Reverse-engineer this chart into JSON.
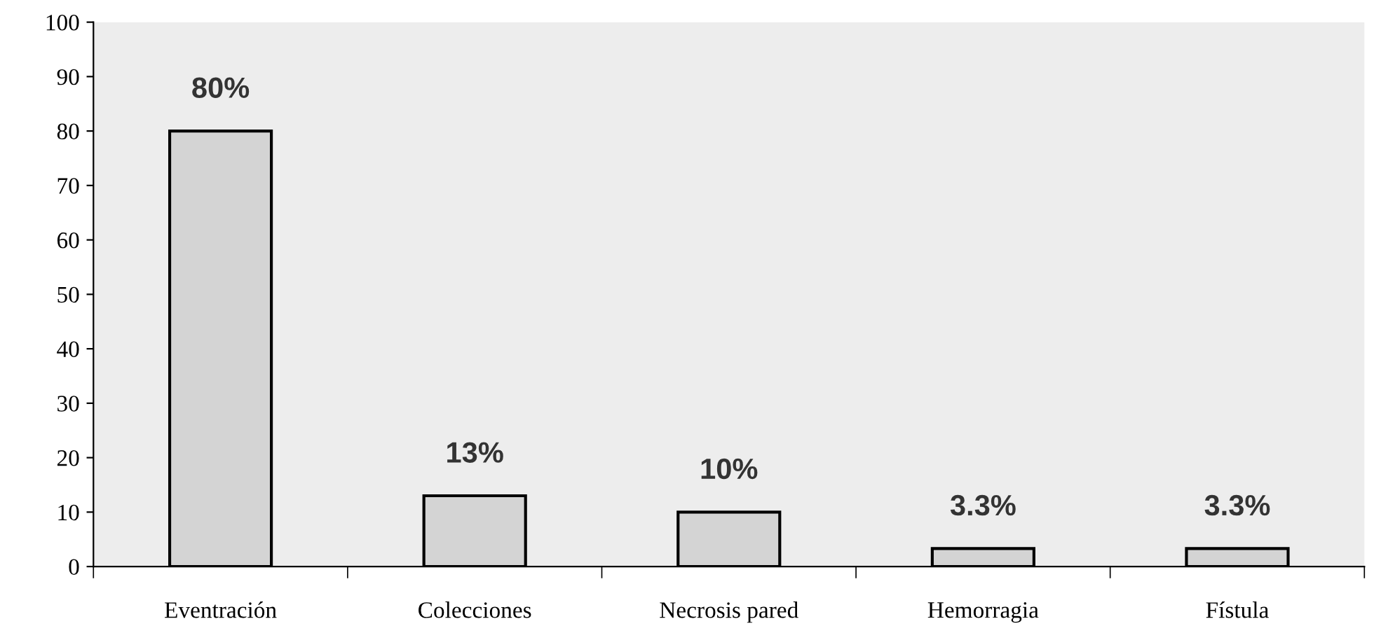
{
  "chart_data": {
    "type": "bar",
    "categories": [
      "Eventración",
      "Colecciones",
      "Necrosis pared",
      "Hemorragia",
      "Fístula"
    ],
    "values": [
      80,
      13,
      10,
      3.3,
      3.3
    ],
    "value_labels": [
      "80%",
      "13%",
      "10%",
      "3.3%",
      "3.3%"
    ],
    "color": "#d4d4d4",
    "ylim": [
      0,
      100
    ],
    "yticks": [
      0,
      10,
      20,
      30,
      40,
      50,
      60,
      70,
      80,
      90,
      100
    ],
    "grid": false,
    "legend": false
  }
}
